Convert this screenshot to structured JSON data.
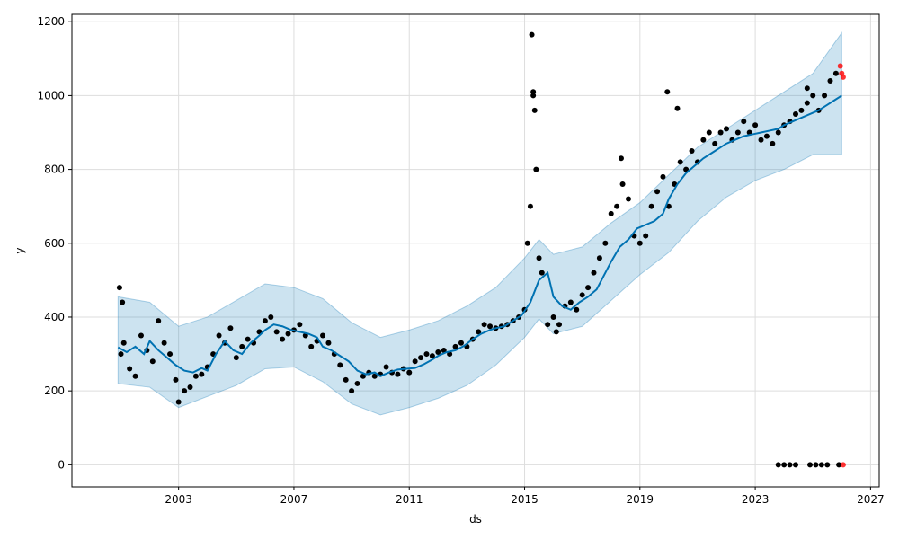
{
  "chart_data": {
    "type": "line",
    "xlabel": "ds",
    "ylabel": "y",
    "xlim": [
      1999.3,
      2027.3
    ],
    "ylim": [
      -60,
      1220
    ],
    "x_ticks": [
      2003,
      2007,
      2011,
      2015,
      2019,
      2023,
      2027
    ],
    "x_tick_labels": [
      "2003",
      "2007",
      "2011",
      "2015",
      "2019",
      "2023",
      "2027"
    ],
    "y_ticks": [
      0,
      200,
      400,
      600,
      800,
      1000,
      1200
    ],
    "y_tick_labels": [
      "0",
      "200",
      "400",
      "600",
      "800",
      "1000",
      "1200"
    ],
    "grid": true,
    "colors": {
      "forecast": "#0072B2",
      "interval": "#0072B2",
      "observed": "#000000",
      "highlighted": "#ff0000"
    },
    "series": [
      {
        "kind": "forecast",
        "x": [
          2000.9,
          2001.2,
          2001.5,
          2001.8,
          2002.0,
          2002.3,
          2002.6,
          2002.9,
          2003.2,
          2003.5,
          2003.8,
          2004.0,
          2004.3,
          2004.6,
          2004.9,
          2005.2,
          2005.5,
          2005.8,
          2006.0,
          2006.3,
          2006.6,
          2006.9,
          2007.2,
          2007.5,
          2007.8,
          2008.0,
          2008.3,
          2008.6,
          2008.9,
          2009.2,
          2009.5,
          2009.8,
          2010.0,
          2010.3,
          2010.6,
          2010.9,
          2011.2,
          2011.5,
          2011.8,
          2012.0,
          2012.3,
          2012.6,
          2012.9,
          2013.2,
          2013.5,
          2013.8,
          2014.0,
          2014.3,
          2014.6,
          2014.9,
          2015.2,
          2015.5,
          2015.8,
          2016.0,
          2016.3,
          2016.6,
          2016.9,
          2017.2,
          2017.5,
          2017.8,
          2018.0,
          2018.3,
          2018.6,
          2018.9,
          2019.2,
          2019.5,
          2019.8,
          2020.0,
          2020.3,
          2020.6,
          2020.9,
          2021.2,
          2021.5,
          2021.8,
          2022.0,
          2022.3,
          2022.6,
          2022.9,
          2023.2,
          2023.5,
          2023.8,
          2024.0,
          2024.3,
          2024.6,
          2024.9,
          2025.2,
          2025.5,
          2025.8,
          2026.0
        ],
        "y": [
          318,
          305,
          320,
          300,
          335,
          310,
          290,
          270,
          255,
          250,
          262,
          255,
          300,
          335,
          310,
          300,
          330,
          350,
          365,
          380,
          375,
          365,
          360,
          355,
          345,
          320,
          310,
          295,
          280,
          255,
          245,
          250,
          240,
          250,
          258,
          260,
          262,
          272,
          285,
          295,
          305,
          310,
          322,
          340,
          355,
          365,
          370,
          375,
          390,
          405,
          440,
          500,
          520,
          455,
          430,
          420,
          440,
          455,
          475,
          520,
          550,
          590,
          610,
          640,
          650,
          660,
          680,
          720,
          760,
          790,
          810,
          830,
          845,
          860,
          870,
          880,
          890,
          895,
          900,
          905,
          910,
          920,
          930,
          940,
          950,
          960,
          975,
          990,
          1000
        ]
      },
      {
        "kind": "interval",
        "x": [
          2000.9,
          2002.0,
          2003.0,
          2004.0,
          2005.0,
          2006.0,
          2007.0,
          2008.0,
          2009.0,
          2010.0,
          2011.0,
          2012.0,
          2013.0,
          2014.0,
          2015.0,
          2015.5,
          2016.0,
          2017.0,
          2018.0,
          2019.0,
          2020.0,
          2021.0,
          2022.0,
          2023.0,
          2024.0,
          2025.0,
          2026.0
        ],
        "lower": [
          220,
          210,
          155,
          185,
          215,
          260,
          265,
          225,
          165,
          135,
          155,
          180,
          215,
          270,
          345,
          395,
          355,
          375,
          445,
          515,
          575,
          660,
          725,
          770,
          800,
          840,
          840
        ],
        "upper": [
          455,
          440,
          375,
          400,
          445,
          490,
          480,
          450,
          385,
          345,
          365,
          390,
          430,
          480,
          560,
          610,
          570,
          590,
          655,
          710,
          785,
          860,
          910,
          960,
          1010,
          1060,
          1170
        ]
      },
      {
        "kind": "observed",
        "x": [
          2001.0,
          2001.1,
          2001.3,
          2001.5,
          2001.7,
          2001.9,
          2002.1,
          2002.3,
          2002.5,
          2002.7,
          2002.9,
          2003.0,
          2003.2,
          2003.4,
          2003.6,
          2003.8,
          2004.0,
          2004.2,
          2004.4,
          2004.6,
          2004.8,
          2005.0,
          2005.2,
          2005.4,
          2005.6,
          2005.8,
          2006.0,
          2006.2,
          2006.4,
          2006.6,
          2006.8,
          2007.0,
          2007.2,
          2007.4,
          2007.6,
          2007.8,
          2008.0,
          2008.2,
          2008.4,
          2008.6,
          2008.8,
          2009.0,
          2009.2,
          2009.4,
          2009.6,
          2009.8,
          2010.0,
          2010.2,
          2010.4,
          2010.6,
          2010.8,
          2011.0,
          2011.2,
          2011.4,
          2011.6,
          2011.8,
          2012.0,
          2012.2,
          2012.4,
          2012.6,
          2012.8,
          2013.0,
          2013.2,
          2013.4,
          2013.6,
          2013.8,
          2014.0,
          2014.2,
          2014.4,
          2014.6,
          2014.8,
          2015.0,
          2015.1,
          2015.2,
          2015.3,
          2015.4,
          2015.5,
          2015.6,
          2015.8,
          2016.0,
          2016.2,
          2016.4,
          2016.6,
          2016.8,
          2017.0,
          2017.2,
          2017.4,
          2017.6,
          2017.8,
          2018.0,
          2018.2,
          2018.4,
          2018.6,
          2018.8,
          2019.0,
          2019.2,
          2019.4,
          2019.6,
          2019.8,
          2020.0,
          2020.2,
          2020.4,
          2020.6,
          2020.8,
          2021.0,
          2021.2,
          2021.4,
          2021.6,
          2021.8,
          2022.0,
          2022.2,
          2022.4,
          2022.6,
          2022.8,
          2023.0,
          2023.2,
          2023.4,
          2023.6,
          2023.8,
          2024.0,
          2024.2,
          2024.4,
          2024.6,
          2024.8,
          2025.0,
          2025.2,
          2025.4,
          2025.6,
          2025.8,
          2000.95,
          2001.05,
          2015.25,
          2015.3,
          2015.35,
          2016.1,
          2018.35,
          2019.95,
          2020.3,
          2024.8,
          2023.8,
          2024.0,
          2024.2,
          2024.4,
          2024.9,
          2025.1,
          2025.3,
          2025.5,
          2025.9
        ],
        "y": [
          300,
          330,
          260,
          240,
          350,
          310,
          280,
          390,
          330,
          300,
          230,
          170,
          200,
          210,
          240,
          245,
          265,
          300,
          350,
          330,
          370,
          290,
          320,
          340,
          330,
          360,
          390,
          400,
          360,
          340,
          355,
          365,
          380,
          350,
          320,
          335,
          350,
          330,
          300,
          270,
          230,
          200,
          220,
          240,
          250,
          240,
          245,
          265,
          250,
          245,
          260,
          250,
          280,
          290,
          300,
          295,
          305,
          310,
          300,
          320,
          330,
          320,
          340,
          360,
          380,
          375,
          370,
          375,
          380,
          390,
          400,
          420,
          600,
          700,
          1000,
          800,
          560,
          520,
          380,
          400,
          380,
          430,
          440,
          420,
          460,
          480,
          520,
          560,
          600,
          680,
          700,
          760,
          720,
          620,
          600,
          620,
          700,
          740,
          780,
          700,
          760,
          820,
          800,
          850,
          820,
          880,
          900,
          870,
          900,
          910,
          880,
          900,
          930,
          900,
          920,
          880,
          890,
          870,
          900,
          920,
          930,
          950,
          960,
          980,
          1000,
          960,
          1000,
          1040,
          1060,
          480,
          440,
          1165,
          1010,
          960,
          360,
          830,
          1010,
          965,
          1020,
          0,
          0,
          0,
          0,
          0,
          0,
          0,
          0,
          0
        ]
      },
      {
        "kind": "highlighted",
        "x": [
          2025.95,
          2026.0,
          2026.05,
          2026.05
        ],
        "y": [
          1080,
          1060,
          1050,
          0
        ]
      }
    ]
  }
}
